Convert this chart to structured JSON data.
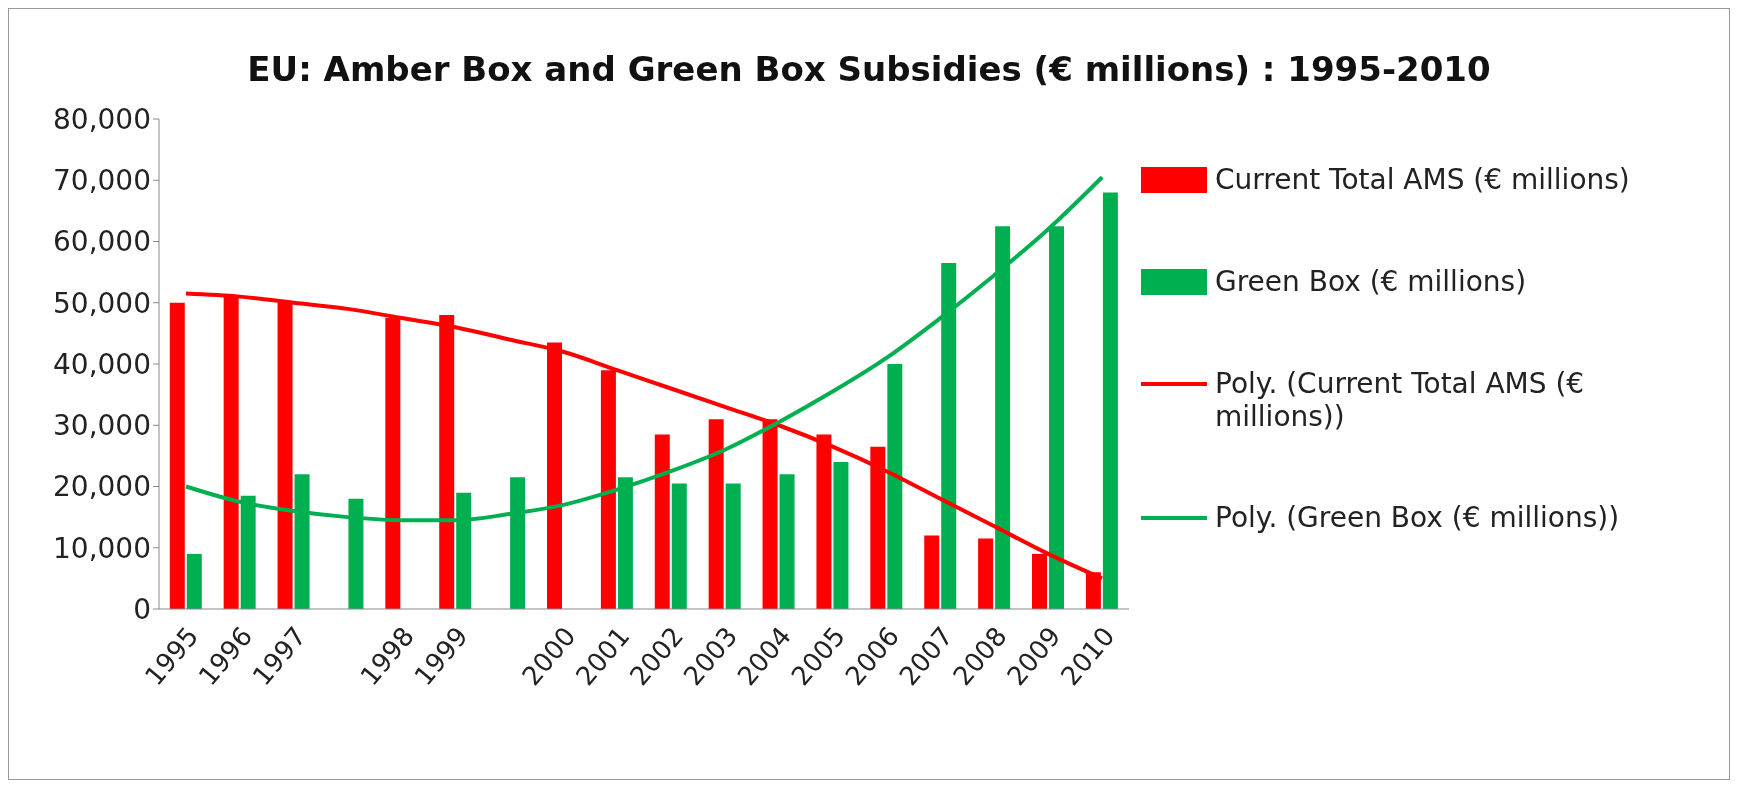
{
  "chart_data": {
    "type": "bar",
    "title": "EU: Amber Box and Green Box Subsidies (€ millions) : 1995-2010",
    "categories": [
      "1995",
      "1996",
      "1997",
      null,
      "1998",
      "1999",
      null,
      "2000",
      "2001",
      "2002",
      "2003",
      "2004",
      "2005",
      "2006",
      "2007",
      "2008",
      "2009",
      "2010"
    ],
    "series": [
      {
        "name": "Current Total AMS (€ millions)",
        "color": "#ff0000",
        "values": [
          50000,
          51000,
          50000,
          null,
          47500,
          48000,
          null,
          43500,
          39000,
          28500,
          31000,
          31000,
          28500,
          26500,
          12000,
          11500,
          9000,
          6000
        ]
      },
      {
        "name": "Green Box (€ millions)",
        "color": "#00b050",
        "values": [
          9000,
          18500,
          22000,
          18000,
          null,
          19000,
          21500,
          null,
          21500,
          20500,
          20500,
          22000,
          24000,
          40000,
          56500,
          62500,
          62500,
          68000
        ]
      },
      {
        "name": "Poly. (Current Total AMS (€ millions))",
        "type": "line",
        "color": "#ff0000",
        "values": [
          51500,
          51000,
          50000,
          49000,
          47500,
          46000,
          44000,
          42000,
          39000,
          36000,
          33000,
          30000,
          26500,
          22500,
          18000,
          13500,
          9000,
          5000
        ]
      },
      {
        "name": "Poly. (Green Box (€ millions))",
        "type": "line",
        "color": "#00b050",
        "values": [
          20000,
          17500,
          16000,
          15000,
          14500,
          14500,
          15500,
          17000,
          19500,
          22500,
          26000,
          30500,
          35500,
          41000,
          47500,
          54500,
          62000,
          70500
        ]
      }
    ],
    "ylim": [
      0,
      80000
    ],
    "yticks": [
      0,
      {
        "value": 10000,
        "label": "10,000"
      },
      {
        "value": 20000,
        "label": "20,000"
      },
      {
        "value": 30000,
        "label": "30,000"
      },
      {
        "value": 40000,
        "label": "40,000"
      },
      {
        "value": 50000,
        "label": "50,000"
      },
      {
        "value": 60000,
        "label": "60,000"
      },
      {
        "value": 70000,
        "label": "70,000"
      },
      {
        "value": 80000,
        "label": "80,000"
      }
    ],
    "grid": false,
    "legend": "right",
    "marker": "none"
  }
}
